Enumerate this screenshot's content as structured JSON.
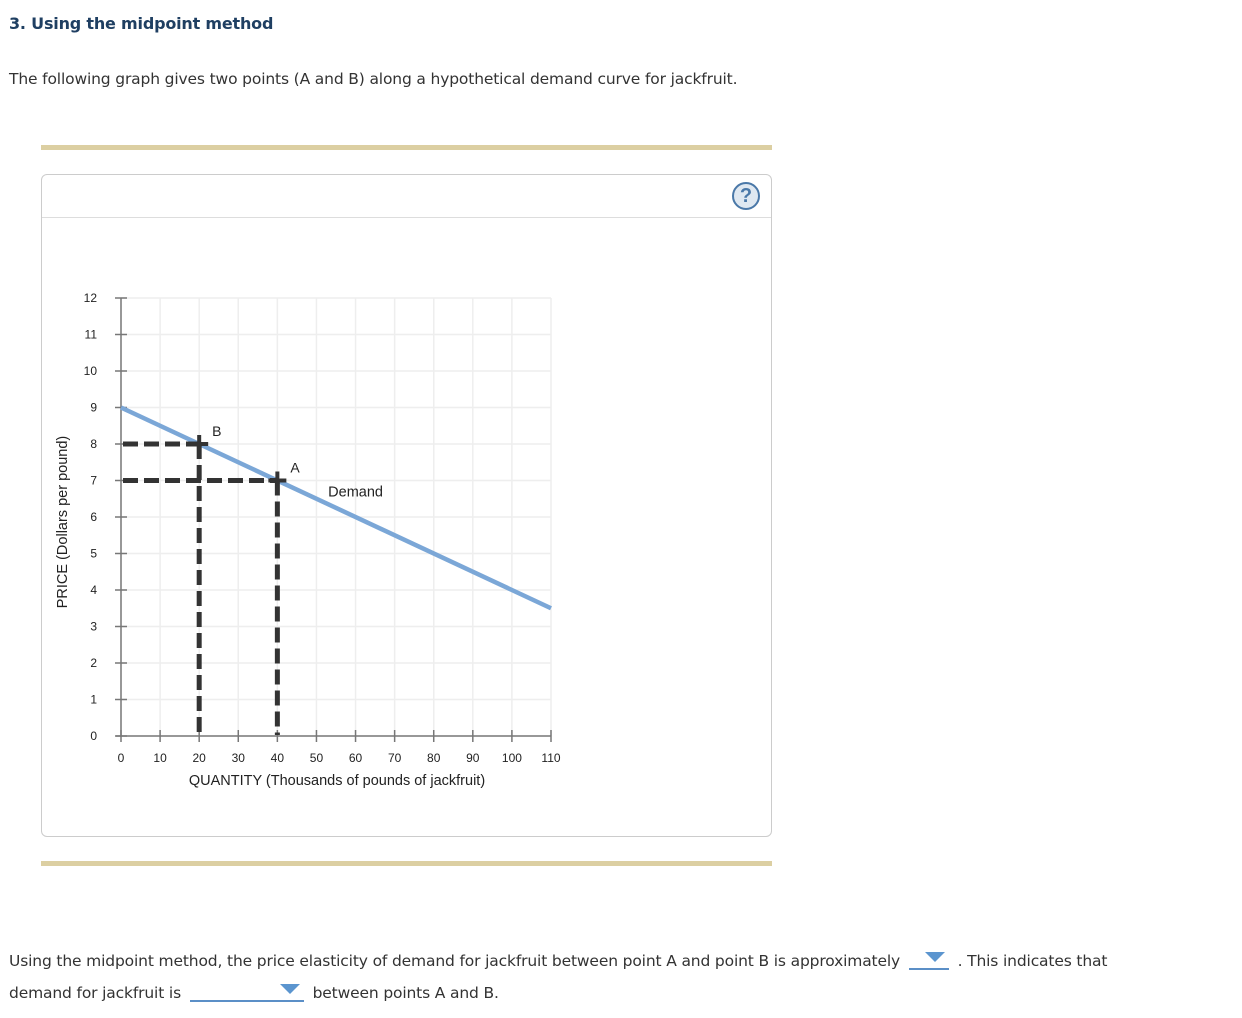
{
  "question": {
    "title": "3. Using the midpoint method",
    "intro": "The following graph gives two points (A and B) along a hypothetical demand curve for jackfruit."
  },
  "graph": {
    "help_icon": "?",
    "help_icon_name": "help-question-icon"
  },
  "chart_data": {
    "type": "line",
    "title": "",
    "xlabel": "QUANTITY (Thousands of pounds of jackfruit)",
    "ylabel": "PRICE (Dollars per pound)",
    "xlim": [
      0,
      110
    ],
    "ylim": [
      0,
      12
    ],
    "x_ticks": [
      0,
      10,
      20,
      30,
      40,
      50,
      60,
      70,
      80,
      90,
      100,
      110
    ],
    "y_ticks": [
      0,
      1,
      2,
      3,
      4,
      5,
      6,
      7,
      8,
      9,
      10,
      11,
      12
    ],
    "grid": true,
    "series": [
      {
        "name": "Demand",
        "color": "#7ba7d7",
        "x": [
          0,
          110
        ],
        "y": [
          9,
          3.5
        ]
      }
    ],
    "points": [
      {
        "label": "A",
        "x": 40,
        "y": 7
      },
      {
        "label": "B",
        "x": 20,
        "y": 8
      }
    ],
    "annotations": [
      {
        "text": "Demand",
        "x": 53,
        "y": 6.7
      }
    ],
    "dashed_guides": true
  },
  "answer": {
    "line1_before": "Using the midpoint method, the price elasticity of demand for jackfruit between point A and point B is approximately",
    "line1_after": ". This indicates that",
    "line2_before": "demand for jackfruit is",
    "line2_after": "between points A and B.",
    "dropdown_elasticity_value": "",
    "dropdown_type_value": ""
  }
}
